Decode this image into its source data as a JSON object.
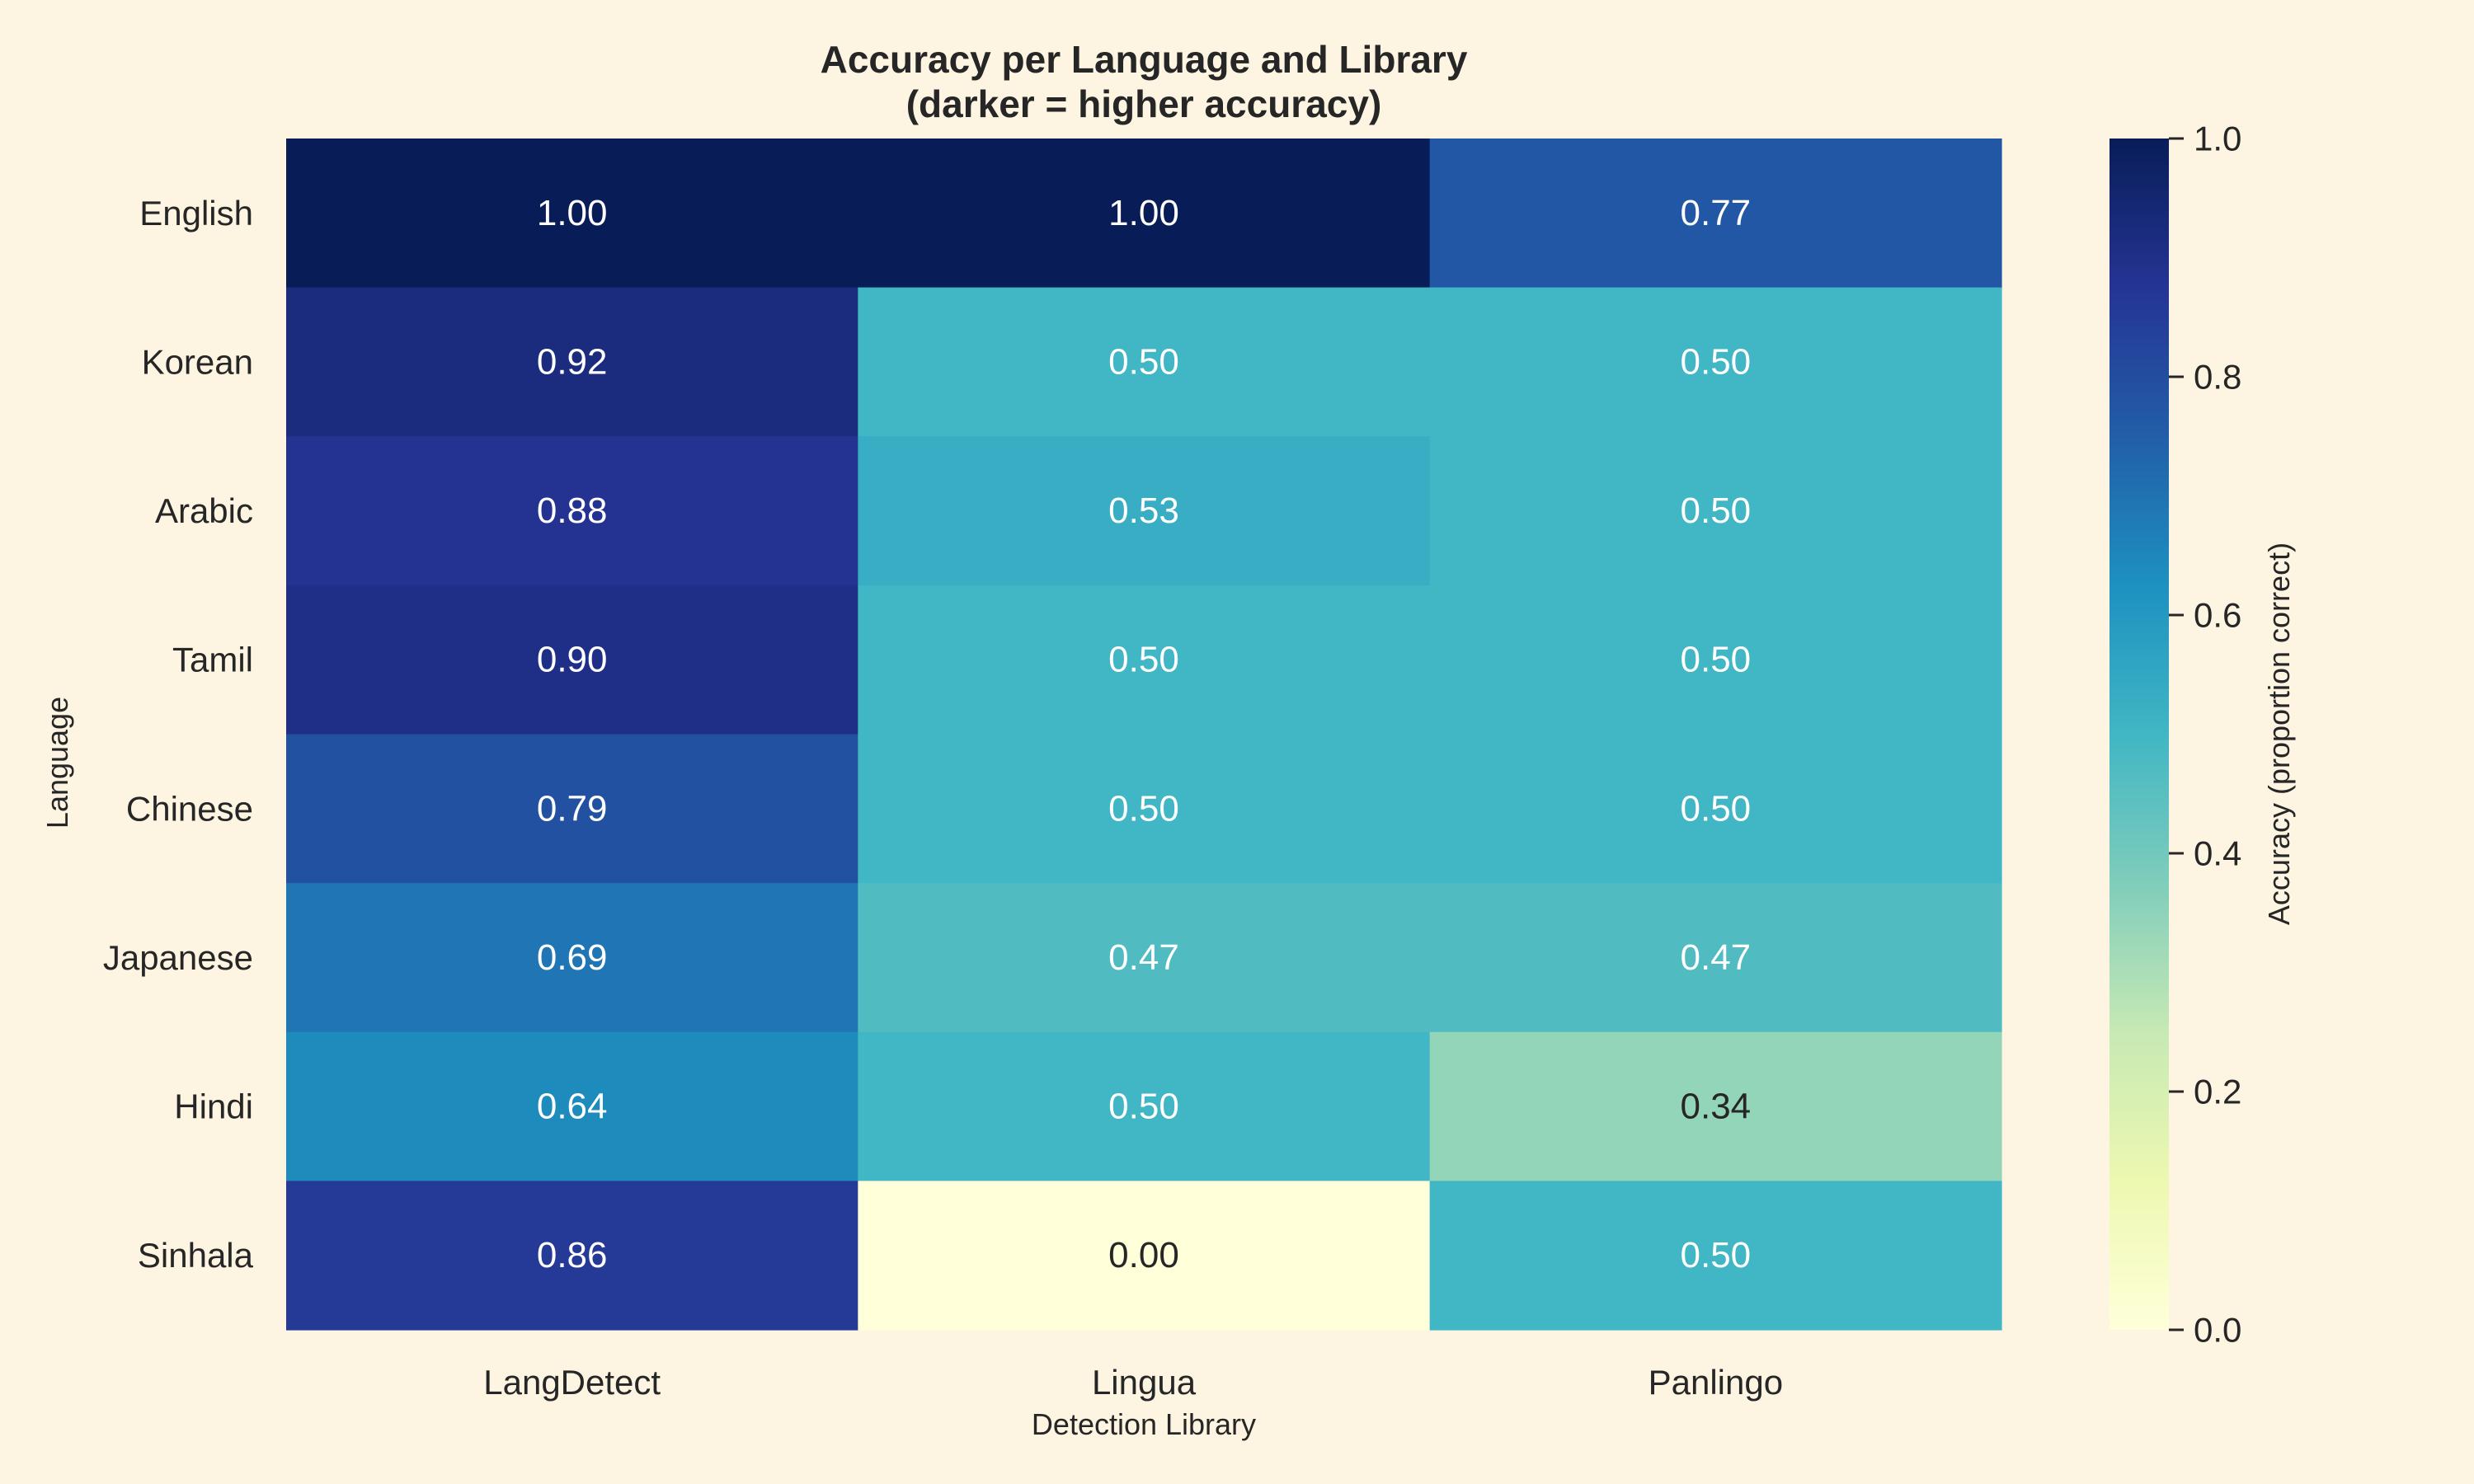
{
  "chart_data": {
    "type": "heatmap",
    "title": "Accuracy per Language and Library",
    "subtitle": "(darker = higher accuracy)",
    "xlabel": "Detection Library",
    "ylabel": "Language",
    "x_categories": [
      "LangDetect",
      "Lingua",
      "Panlingo"
    ],
    "y_categories": [
      "English",
      "Korean",
      "Arabic",
      "Tamil",
      "Chinese",
      "Japanese",
      "Hindi",
      "Sinhala"
    ],
    "values": [
      [
        1.0,
        1.0,
        0.77
      ],
      [
        0.92,
        0.5,
        0.5
      ],
      [
        0.88,
        0.53,
        0.5
      ],
      [
        0.9,
        0.5,
        0.5
      ],
      [
        0.79,
        0.5,
        0.5
      ],
      [
        0.69,
        0.47,
        0.47
      ],
      [
        0.64,
        0.5,
        0.34
      ],
      [
        0.86,
        0.0,
        0.5
      ]
    ],
    "value_labels": [
      [
        "1.00",
        "1.00",
        "0.77"
      ],
      [
        "0.92",
        "0.50",
        "0.50"
      ],
      [
        "0.88",
        "0.53",
        "0.50"
      ],
      [
        "0.90",
        "0.50",
        "0.50"
      ],
      [
        "0.79",
        "0.50",
        "0.50"
      ],
      [
        "0.69",
        "0.47",
        "0.47"
      ],
      [
        "0.64",
        "0.50",
        "0.34"
      ],
      [
        "0.86",
        "0.00",
        "0.50"
      ]
    ],
    "colormap": "YlGnBu",
    "vmin": 0.0,
    "vmax": 1.0,
    "colorbar": {
      "label": "Accuracy (proportion correct)",
      "ticks": [
        "0.0",
        "0.2",
        "0.4",
        "0.6",
        "0.8",
        "1.0"
      ]
    },
    "background_color": "#fdf5e2",
    "text_color": "#262626"
  }
}
